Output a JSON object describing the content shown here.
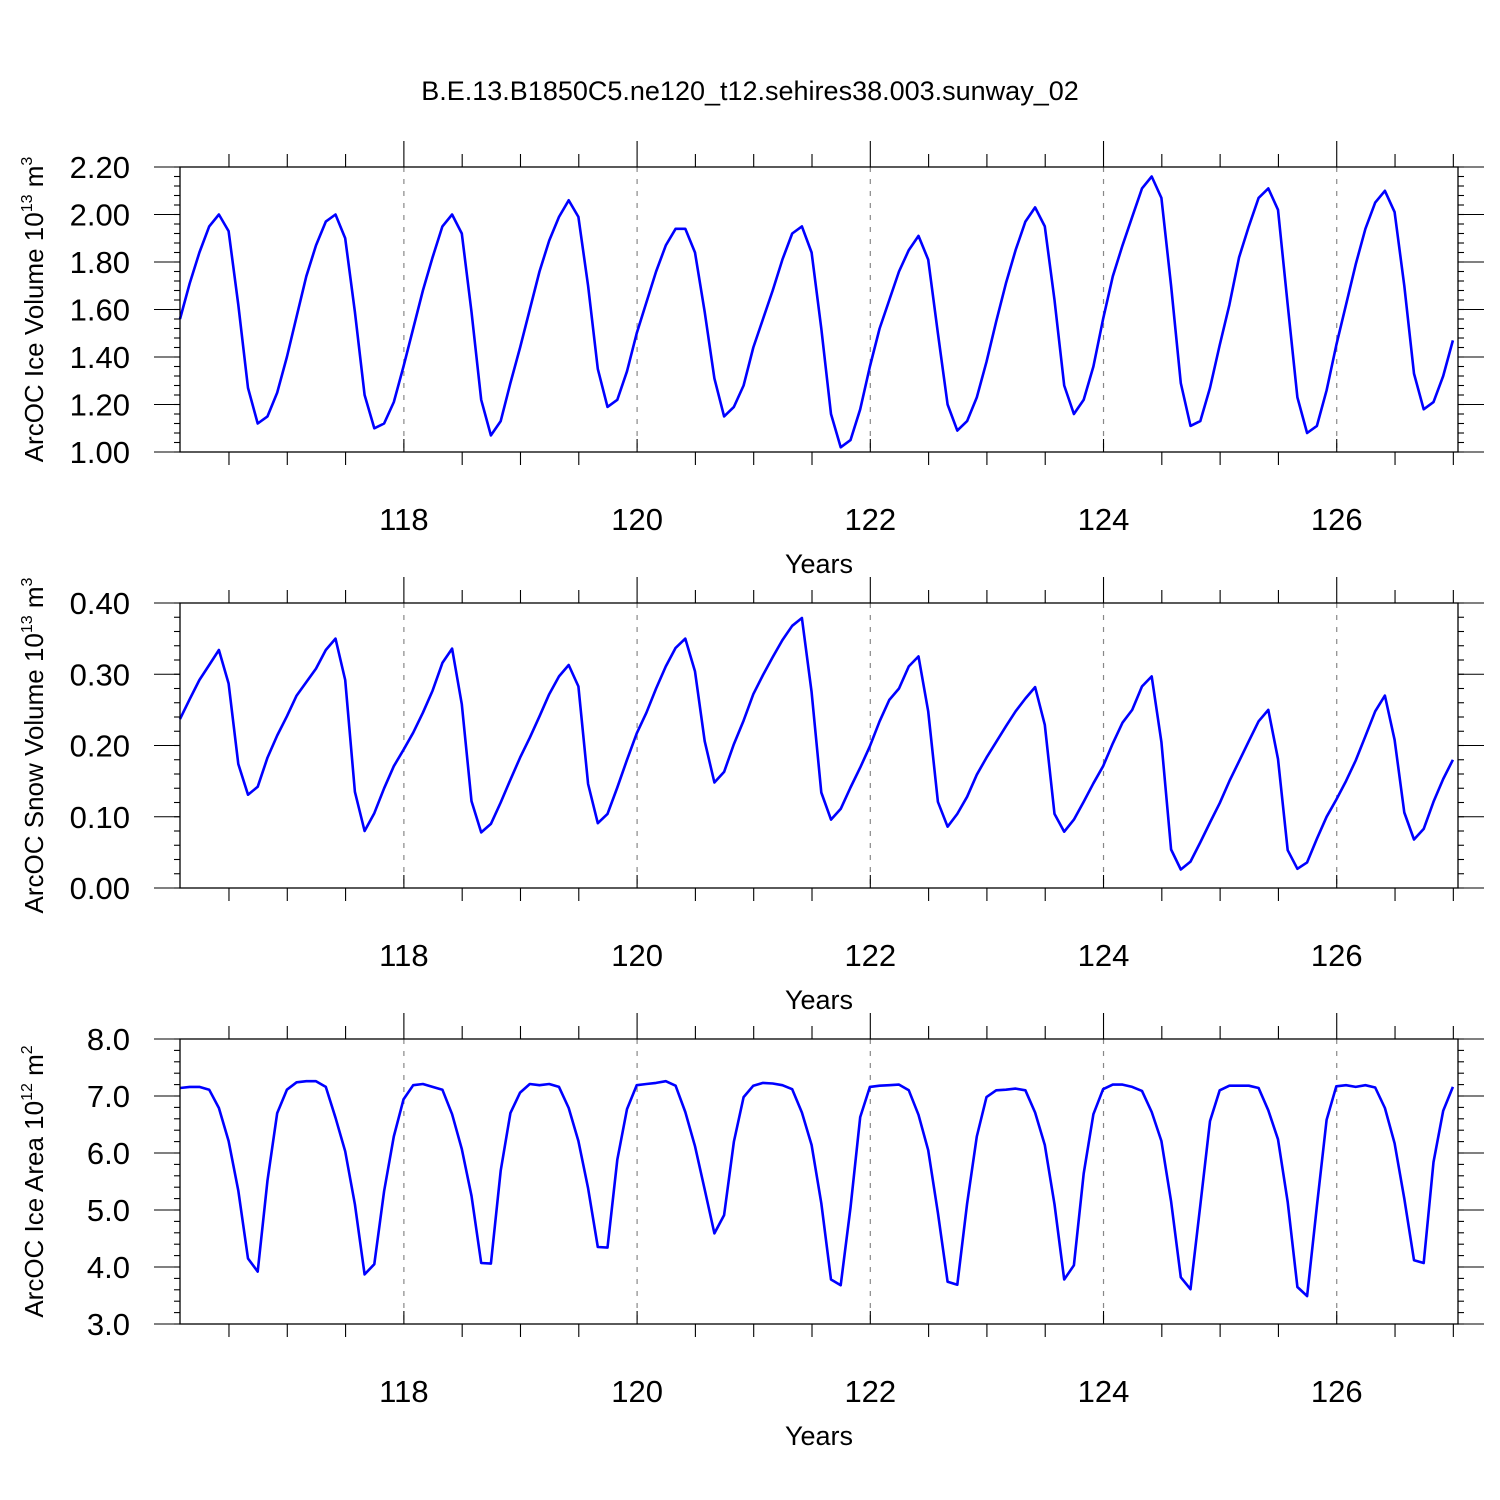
{
  "title": "B.E.13.B1850C5.ne120_t12.sehires38.003.sunway_02",
  "colors": {
    "line": "#0000ff",
    "grid": "#888888",
    "axis": "#000000"
  },
  "chart_data": [
    {
      "type": "line",
      "ylabel": {
        "pre": "ArcOC Ice Volume 10",
        "exp": "13",
        "unit": " m",
        "unit_exp": "3"
      },
      "xlabel": "Years",
      "xlim": [
        116.08,
        127.04
      ],
      "ylim": [
        1.0,
        2.2
      ],
      "x_ticks": [
        118,
        120,
        122,
        124,
        126
      ],
      "x_tick_labels": [
        "118",
        "120",
        "122",
        "124",
        "126"
      ],
      "y_ticks": [
        1.0,
        1.2,
        1.4,
        1.6,
        1.8,
        2.0,
        2.2
      ],
      "y_tick_labels": [
        "1.00",
        "1.20",
        "1.40",
        "1.60",
        "1.80",
        "2.00",
        "2.20"
      ],
      "grid": "dashed vertical at major x ticks",
      "series": [
        {
          "x_start": 116.08,
          "x_step": 0.08333,
          "values": [
            1.56,
            1.71,
            1.84,
            1.95,
            2.0,
            1.93,
            1.62,
            1.27,
            1.12,
            1.15,
            1.25,
            1.4,
            1.57,
            1.74,
            1.87,
            1.97,
            2.0,
            1.9,
            1.59,
            1.24,
            1.1,
            1.12,
            1.21,
            1.36,
            1.52,
            1.68,
            1.82,
            1.95,
            2.0,
            1.92,
            1.59,
            1.22,
            1.07,
            1.13,
            1.29,
            1.44,
            1.6,
            1.76,
            1.89,
            1.99,
            2.06,
            1.99,
            1.7,
            1.35,
            1.19,
            1.22,
            1.34,
            1.5,
            1.63,
            1.76,
            1.87,
            1.94,
            1.94,
            1.84,
            1.59,
            1.31,
            1.15,
            1.19,
            1.28,
            1.44,
            1.56,
            1.68,
            1.81,
            1.92,
            1.95,
            1.84,
            1.52,
            1.16,
            1.02,
            1.05,
            1.18,
            1.36,
            1.52,
            1.64,
            1.76,
            1.85,
            1.91,
            1.81,
            1.5,
            1.2,
            1.09,
            1.13,
            1.23,
            1.38,
            1.55,
            1.71,
            1.85,
            1.97,
            2.03,
            1.95,
            1.64,
            1.28,
            1.16,
            1.22,
            1.36,
            1.56,
            1.74,
            1.87,
            1.99,
            2.11,
            2.16,
            2.07,
            1.7,
            1.29,
            1.11,
            1.13,
            1.27,
            1.45,
            1.62,
            1.82,
            1.95,
            2.07,
            2.11,
            2.02,
            1.62,
            1.23,
            1.08,
            1.11,
            1.26,
            1.45,
            1.62,
            1.79,
            1.94,
            2.05,
            2.1,
            2.01,
            1.7,
            1.33,
            1.18,
            1.21,
            1.32,
            1.47
          ]
        }
      ]
    },
    {
      "type": "line",
      "ylabel": {
        "pre": "ArcOC Snow Volume 10",
        "exp": "13",
        "unit": " m",
        "unit_exp": "3"
      },
      "xlabel": "Years",
      "xlim": [
        116.08,
        127.04
      ],
      "ylim": [
        0.0,
        0.4
      ],
      "x_ticks": [
        118,
        120,
        122,
        124,
        126
      ],
      "x_tick_labels": [
        "118",
        "120",
        "122",
        "124",
        "126"
      ],
      "y_ticks": [
        0.0,
        0.1,
        0.2,
        0.3,
        0.4
      ],
      "y_tick_labels": [
        "0.00",
        "0.10",
        "0.20",
        "0.30",
        "0.40"
      ],
      "grid": "dashed vertical at major x ticks",
      "series": [
        {
          "x_start": 116.08,
          "x_step": 0.08333,
          "values": [
            0.237,
            0.265,
            0.292,
            0.313,
            0.334,
            0.287,
            0.174,
            0.131,
            0.142,
            0.183,
            0.214,
            0.241,
            0.27,
            0.289,
            0.308,
            0.334,
            0.35,
            0.292,
            0.135,
            0.08,
            0.105,
            0.14,
            0.171,
            0.194,
            0.218,
            0.246,
            0.277,
            0.316,
            0.336,
            0.258,
            0.122,
            0.078,
            0.09,
            0.12,
            0.152,
            0.183,
            0.211,
            0.241,
            0.272,
            0.297,
            0.313,
            0.283,
            0.146,
            0.091,
            0.104,
            0.141,
            0.18,
            0.217,
            0.246,
            0.28,
            0.311,
            0.337,
            0.35,
            0.304,
            0.206,
            0.148,
            0.163,
            0.202,
            0.235,
            0.272,
            0.299,
            0.324,
            0.348,
            0.368,
            0.379,
            0.275,
            0.134,
            0.096,
            0.111,
            0.141,
            0.169,
            0.199,
            0.234,
            0.264,
            0.28,
            0.311,
            0.325,
            0.248,
            0.121,
            0.086,
            0.104,
            0.128,
            0.159,
            0.183,
            0.205,
            0.227,
            0.248,
            0.266,
            0.282,
            0.229,
            0.104,
            0.079,
            0.096,
            0.121,
            0.147,
            0.171,
            0.203,
            0.232,
            0.25,
            0.283,
            0.297,
            0.205,
            0.054,
            0.026,
            0.037,
            0.064,
            0.092,
            0.119,
            0.15,
            0.178,
            0.206,
            0.234,
            0.25,
            0.181,
            0.053,
            0.027,
            0.036,
            0.069,
            0.1,
            0.124,
            0.15,
            0.179,
            0.213,
            0.248,
            0.27,
            0.208,
            0.106,
            0.068,
            0.083,
            0.121,
            0.153,
            0.18
          ]
        }
      ]
    },
    {
      "type": "line",
      "ylabel": {
        "pre": "ArcOC Ice Area 10",
        "exp": "12",
        "unit": " m",
        "unit_exp": "2"
      },
      "xlabel": "Years",
      "xlim": [
        116.08,
        127.04
      ],
      "ylim": [
        3.0,
        8.0
      ],
      "x_ticks": [
        118,
        120,
        122,
        124,
        126
      ],
      "x_tick_labels": [
        "118",
        "120",
        "122",
        "124",
        "126"
      ],
      "y_ticks": [
        3.0,
        4.0,
        5.0,
        6.0,
        7.0,
        8.0
      ],
      "y_tick_labels": [
        "3.0",
        "4.0",
        "5.0",
        "6.0",
        "7.0",
        "8.0"
      ],
      "grid": "dashed vertical at major x ticks",
      "series": [
        {
          "x_start": 116.08,
          "x_step": 0.08333,
          "values": [
            7.14,
            7.16,
            7.16,
            7.11,
            6.79,
            6.21,
            5.34,
            4.15,
            3.92,
            5.52,
            6.7,
            7.11,
            7.24,
            7.26,
            7.26,
            7.16,
            6.62,
            6.03,
            5.1,
            3.87,
            4.05,
            5.33,
            6.29,
            6.94,
            7.19,
            7.21,
            7.16,
            7.11,
            6.68,
            6.07,
            5.25,
            4.07,
            4.06,
            5.69,
            6.7,
            7.06,
            7.21,
            7.19,
            7.21,
            7.16,
            6.79,
            6.21,
            5.38,
            4.35,
            4.34,
            5.88,
            6.77,
            7.19,
            7.21,
            7.23,
            7.26,
            7.18,
            6.72,
            6.12,
            5.36,
            4.59,
            4.91,
            6.2,
            6.98,
            7.18,
            7.23,
            7.22,
            7.19,
            7.12,
            6.71,
            6.14,
            5.12,
            3.78,
            3.68,
            5.04,
            6.63,
            7.16,
            7.18,
            7.19,
            7.2,
            7.1,
            6.67,
            6.05,
            4.95,
            3.74,
            3.69,
            5.11,
            6.29,
            6.98,
            7.1,
            7.11,
            7.13,
            7.1,
            6.71,
            6.14,
            5.1,
            3.78,
            4.03,
            5.64,
            6.68,
            7.12,
            7.2,
            7.2,
            7.16,
            7.09,
            6.72,
            6.21,
            5.15,
            3.82,
            3.61,
            5.08,
            6.56,
            7.1,
            7.18,
            7.18,
            7.18,
            7.14,
            6.75,
            6.24,
            5.14,
            3.65,
            3.49,
            5.07,
            6.58,
            7.17,
            7.19,
            7.16,
            7.19,
            7.15,
            6.79,
            6.17,
            5.2,
            4.12,
            4.07,
            5.84,
            6.74,
            7.16
          ]
        }
      ]
    }
  ]
}
